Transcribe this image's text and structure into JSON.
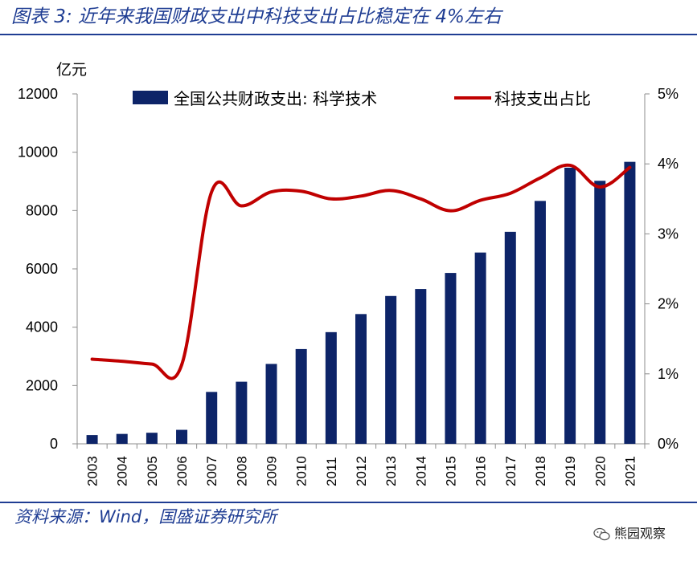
{
  "header": {
    "title": "图表 3:  近年来我国财政支出中科技支出占比稳定在 4%左右"
  },
  "footer": {
    "source": "资料来源：Wind，国盛证券研究所",
    "watermark": "熊园观察",
    "watermark_icon": "wechat-icon"
  },
  "colors": {
    "bar": "#0d2468",
    "line": "#c00000",
    "header": "#1f3d93"
  },
  "chart_data": {
    "type": "bar+line",
    "title": "",
    "ylabel_left": "亿元",
    "categories": [
      "2003",
      "2004",
      "2005",
      "2006",
      "2007",
      "2008",
      "2009",
      "2010",
      "2011",
      "2012",
      "2013",
      "2014",
      "2015",
      "2016",
      "2017",
      "2018",
      "2019",
      "2020",
      "2021"
    ],
    "ylim_left": [
      0,
      12000
    ],
    "yticks_left": [
      0,
      2000,
      4000,
      6000,
      8000,
      10000,
      12000
    ],
    "ylim_right": [
      0,
      5
    ],
    "yticks_right": [
      "0%",
      "1%",
      "2%",
      "3%",
      "4%",
      "5%"
    ],
    "legend_position": "top",
    "grid": false,
    "series": [
      {
        "name": "全国公共财政支出: 科学技术",
        "type": "bar",
        "axis": "left",
        "values": [
          300,
          340,
          380,
          480,
          1780,
          2130,
          2740,
          3250,
          3830,
          4450,
          5070,
          5310,
          5860,
          6560,
          7270,
          8330,
          9470,
          9020,
          9670
        ]
      },
      {
        "name": "科技支出占比",
        "type": "line",
        "axis": "right",
        "unit": "%",
        "values": [
          1.21,
          1.18,
          1.14,
          1.13,
          3.6,
          3.4,
          3.6,
          3.61,
          3.5,
          3.54,
          3.62,
          3.5,
          3.33,
          3.48,
          3.58,
          3.8,
          3.98,
          3.67,
          3.95
        ]
      }
    ]
  }
}
